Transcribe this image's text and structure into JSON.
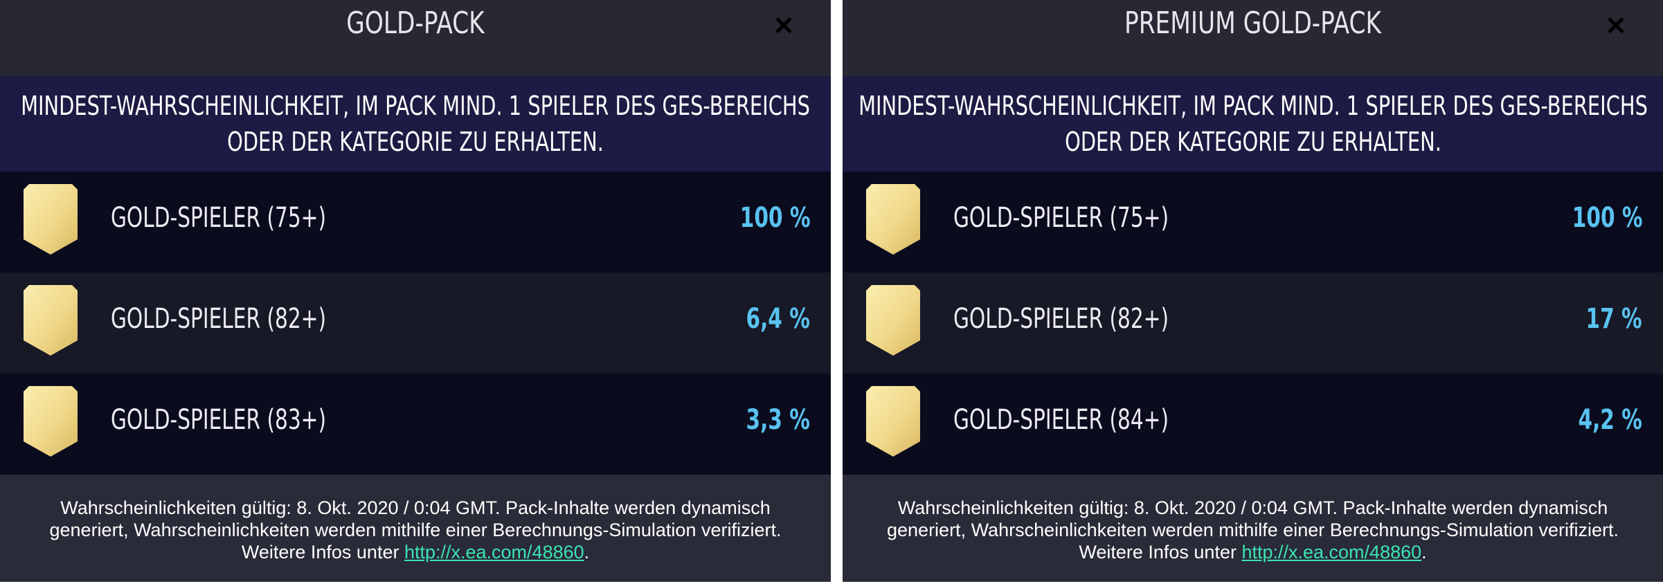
{
  "colors": {
    "panel_bg": "#272833",
    "banner_bg": "#1d1b43",
    "row_dark": "#0b0b1e",
    "row_mid": "#171927",
    "value_blue": "#59c3f1",
    "link_green": "#3be3b5",
    "shield_gold": "#f2dc8c"
  },
  "panels": [
    {
      "title": "GOLD-PACK",
      "close_icon": "close-icon",
      "banner": "MINDEST-WAHRSCHEINLICHKEIT, IM PACK MIND. 1 SPIELER DES GES-BEREICHS ODER DER KATEGORIE ZU ERHALTEN.",
      "rows": [
        {
          "icon": "gold-shield-icon",
          "label": "GOLD-SPIELER (75+)",
          "value": "100 %"
        },
        {
          "icon": "gold-shield-icon",
          "label": "GOLD-SPIELER (82+)",
          "value": "6,4 %"
        },
        {
          "icon": "gold-shield-icon",
          "label": "GOLD-SPIELER (83+)",
          "value": "3,3 %"
        }
      ],
      "footer": {
        "line1": "Wahrscheinlichkeiten gültig: 8. Okt. 2020 / 0:04 GMT. Pack-Inhalte werden dynamisch",
        "line2": "generiert, Wahrscheinlichkeiten werden mithilfe einer Berechnungs-Simulation verifiziert.",
        "line3_prefix": "Weitere Infos unter ",
        "link": "http://x.ea.com/48860",
        "line3_suffix": "."
      }
    },
    {
      "title": "PREMIUM GOLD-PACK",
      "close_icon": "close-icon",
      "banner": "MINDEST-WAHRSCHEINLICHKEIT, IM PACK MIND. 1 SPIELER DES GES-BEREICHS ODER DER KATEGORIE ZU ERHALTEN.",
      "rows": [
        {
          "icon": "gold-shield-icon",
          "label": "GOLD-SPIELER (75+)",
          "value": "100 %"
        },
        {
          "icon": "gold-shield-icon",
          "label": "GOLD-SPIELER (82+)",
          "value": "17 %"
        },
        {
          "icon": "gold-shield-icon",
          "label": "GOLD-SPIELER (84+)",
          "value": "4,2 %"
        }
      ],
      "footer": {
        "line1": "Wahrscheinlichkeiten gültig: 8. Okt. 2020 / 0:04 GMT. Pack-Inhalte werden dynamisch",
        "line2": "generiert, Wahrscheinlichkeiten werden mithilfe einer Berechnungs-Simulation verifiziert.",
        "line3_prefix": "Weitere Infos unter ",
        "link": "http://x.ea.com/48860",
        "line3_suffix": "."
      }
    }
  ]
}
